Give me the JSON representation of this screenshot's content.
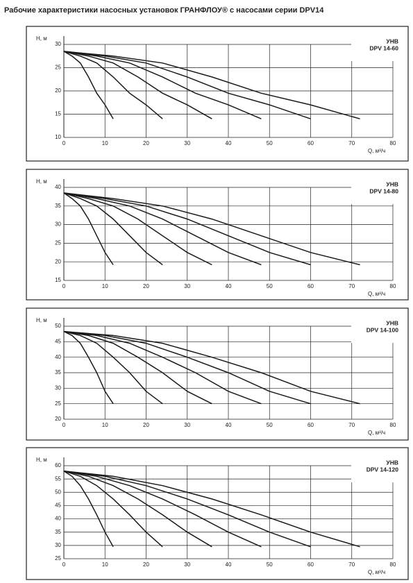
{
  "header": {
    "title": "Рабочие характеристики насосных установок  ГРАНФЛОУ® с насосами серии DPV14"
  },
  "chart_data": [
    {
      "type": "line",
      "annotations": [
        "УНВ",
        "DPV 14-60"
      ],
      "ylabel": "H, м",
      "xlabel": "Q, м³/ч",
      "color": "#1a1a1a",
      "grid": true,
      "xlim": [
        0,
        80
      ],
      "xticks": [
        0,
        10,
        20,
        30,
        40,
        50,
        60,
        70,
        80
      ],
      "ylim": [
        10,
        30
      ],
      "yticks": [
        10,
        15,
        20,
        25,
        30
      ],
      "series": [
        {
          "x": [
            0,
            2,
            4,
            6,
            8,
            10,
            12
          ],
          "values": [
            28.5,
            27.5,
            26,
            23,
            19.5,
            17,
            14
          ]
        },
        {
          "x": [
            0,
            4,
            8,
            12,
            16,
            20,
            24
          ],
          "values": [
            28.5,
            27.5,
            26,
            23,
            19.5,
            17,
            14
          ]
        },
        {
          "x": [
            0,
            6,
            12,
            18,
            24,
            30,
            36
          ],
          "values": [
            28.5,
            27.5,
            26,
            23,
            19.5,
            17,
            14
          ]
        },
        {
          "x": [
            0,
            8,
            16,
            24,
            32,
            40,
            48
          ],
          "values": [
            28.5,
            27.5,
            26,
            23,
            19.5,
            17,
            14
          ]
        },
        {
          "x": [
            0,
            10,
            20,
            30,
            40,
            50,
            60
          ],
          "values": [
            28.5,
            27.5,
            26,
            23,
            19.5,
            17,
            14
          ]
        },
        {
          "x": [
            0,
            12,
            24,
            36,
            48,
            60,
            72
          ],
          "values": [
            28.5,
            27.5,
            26,
            23,
            19.5,
            17,
            14
          ]
        }
      ]
    },
    {
      "type": "line",
      "annotations": [
        "УНВ",
        "DPV 14-80"
      ],
      "ylabel": "H, м",
      "xlabel": "Q, м³/ч",
      "color": "#1a1a1a",
      "grid": true,
      "xlim": [
        0,
        80
      ],
      "xticks": [
        0,
        10,
        20,
        30,
        40,
        50,
        60,
        70,
        80
      ],
      "ylim": [
        15,
        40
      ],
      "yticks": [
        15,
        20,
        25,
        30,
        35,
        40
      ],
      "series": [
        {
          "x": [
            0,
            2,
            4,
            6,
            8,
            10,
            12
          ],
          "values": [
            38.5,
            37,
            35,
            31.5,
            27,
            22.5,
            19.2
          ]
        },
        {
          "x": [
            0,
            4,
            8,
            12,
            16,
            20,
            24
          ],
          "values": [
            38.5,
            37,
            35,
            31.5,
            27,
            22.5,
            19.2
          ]
        },
        {
          "x": [
            0,
            6,
            12,
            18,
            24,
            30,
            36
          ],
          "values": [
            38.5,
            37,
            35,
            31.5,
            27,
            22.5,
            19.2
          ]
        },
        {
          "x": [
            0,
            8,
            16,
            24,
            32,
            40,
            48
          ],
          "values": [
            38.5,
            37,
            35,
            31.5,
            27,
            22.5,
            19.2
          ]
        },
        {
          "x": [
            0,
            10,
            20,
            30,
            40,
            50,
            60
          ],
          "values": [
            38.5,
            37,
            35,
            31.5,
            27,
            22.5,
            19.2
          ]
        },
        {
          "x": [
            0,
            12,
            24,
            36,
            48,
            60,
            72
          ],
          "values": [
            38.5,
            37,
            35,
            31.5,
            27,
            22.5,
            19.2
          ]
        }
      ]
    },
    {
      "type": "line",
      "annotations": [
        "УНВ",
        "DPV 14-100"
      ],
      "ylabel": "H, м",
      "xlabel": "Q, м³/ч",
      "color": "#1a1a1a",
      "grid": true,
      "xlim": [
        0,
        80
      ],
      "xticks": [
        0,
        10,
        20,
        30,
        40,
        50,
        60,
        70,
        80
      ],
      "ylim": [
        20,
        50
      ],
      "yticks": [
        20,
        25,
        30,
        35,
        40,
        45,
        50
      ],
      "series": [
        {
          "x": [
            0,
            2,
            4,
            6,
            8,
            10,
            12
          ],
          "values": [
            48.3,
            47,
            44.5,
            40,
            35,
            29,
            25
          ]
        },
        {
          "x": [
            0,
            4,
            8,
            12,
            16,
            20,
            24
          ],
          "values": [
            48.3,
            47,
            44.5,
            40,
            35,
            29,
            25
          ]
        },
        {
          "x": [
            0,
            6,
            12,
            18,
            24,
            30,
            36
          ],
          "values": [
            48.3,
            47,
            44.5,
            40,
            35,
            29,
            25
          ]
        },
        {
          "x": [
            0,
            8,
            16,
            24,
            32,
            40,
            48
          ],
          "values": [
            48.3,
            47,
            44.5,
            40,
            35,
            29,
            25
          ]
        },
        {
          "x": [
            0,
            10,
            20,
            30,
            40,
            50,
            60
          ],
          "values": [
            48.3,
            47,
            44.5,
            40,
            35,
            29,
            25
          ]
        },
        {
          "x": [
            0,
            12,
            24,
            36,
            48,
            60,
            72
          ],
          "values": [
            48.3,
            47,
            44.5,
            40,
            35,
            29,
            25
          ]
        }
      ]
    },
    {
      "type": "line",
      "annotations": [
        "УНВ",
        "DPV 14-120"
      ],
      "ylabel": "H, м",
      "xlabel": "Q, м³/ч",
      "color": "#1a1a1a",
      "grid": true,
      "xlim": [
        0,
        80
      ],
      "xticks": [
        0,
        10,
        20,
        30,
        40,
        50,
        60,
        70,
        80
      ],
      "ylim": [
        25,
        60
      ],
      "yticks": [
        25,
        30,
        35,
        40,
        45,
        50,
        55,
        60
      ],
      "series": [
        {
          "x": [
            0,
            2,
            4,
            6,
            8,
            10,
            12
          ],
          "values": [
            58,
            56,
            52.5,
            47.5,
            41.5,
            35,
            29.5
          ]
        },
        {
          "x": [
            0,
            4,
            8,
            12,
            16,
            20,
            24
          ],
          "values": [
            58,
            56,
            52.5,
            47.5,
            41.5,
            35,
            29.5
          ]
        },
        {
          "x": [
            0,
            6,
            12,
            18,
            24,
            30,
            36
          ],
          "values": [
            58,
            56,
            52.5,
            47.5,
            41.5,
            35,
            29.5
          ]
        },
        {
          "x": [
            0,
            8,
            16,
            24,
            32,
            40,
            48
          ],
          "values": [
            58,
            56,
            52.5,
            47.5,
            41.5,
            35,
            29.5
          ]
        },
        {
          "x": [
            0,
            10,
            20,
            30,
            40,
            50,
            60
          ],
          "values": [
            58,
            56,
            52.5,
            47.5,
            41.5,
            35,
            29.5
          ]
        },
        {
          "x": [
            0,
            12,
            24,
            36,
            48,
            60,
            72
          ],
          "values": [
            58,
            56,
            52.5,
            47.5,
            41.5,
            35,
            29.5
          ]
        }
      ]
    }
  ]
}
